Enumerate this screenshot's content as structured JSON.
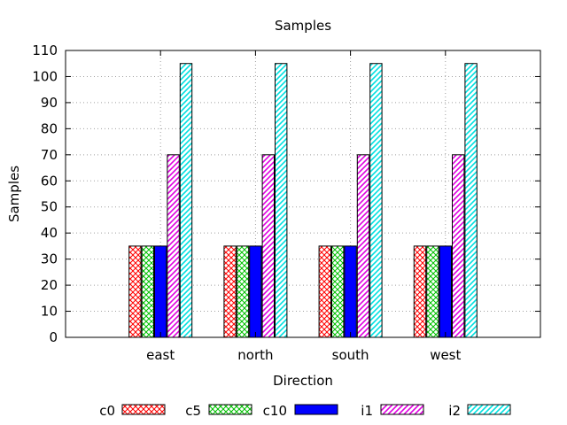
{
  "chart_data": {
    "type": "bar",
    "title": "Samples",
    "xlabel": "Direction",
    "ylabel": "Samples",
    "ylim": [
      0,
      110
    ],
    "ytick_step": 10,
    "grid": true,
    "legend_position": "bottom",
    "categories": [
      "east",
      "north",
      "south",
      "west"
    ],
    "series": [
      {
        "name": "c0",
        "values": [
          35,
          35,
          35,
          35
        ],
        "color": "#ff0000",
        "fill": "crosshatch"
      },
      {
        "name": "c5",
        "values": [
          35,
          35,
          35,
          35
        ],
        "color": "#00c000",
        "fill": "crosshatch"
      },
      {
        "name": "c10",
        "values": [
          35,
          35,
          35,
          35
        ],
        "color": "#0000ff",
        "fill": "solid"
      },
      {
        "name": "i1",
        "values": [
          70,
          70,
          70,
          70
        ],
        "color": "#e000e0",
        "fill": "diagonal"
      },
      {
        "name": "i2",
        "values": [
          105,
          105,
          105,
          105
        ],
        "color": "#00e0e0",
        "fill": "diagonal"
      }
    ]
  }
}
